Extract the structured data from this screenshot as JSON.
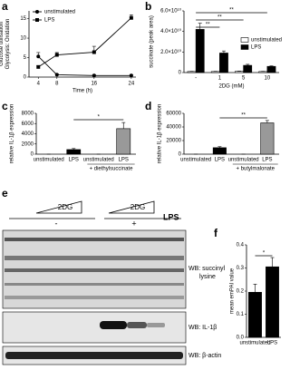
{
  "panel_labels": [
    "a",
    "b",
    "c",
    "d",
    "e",
    "f"
  ],
  "chart_data": [
    {
      "type": "line",
      "ylabel": [
        "Glucose utilisation",
        "Glycolysis: Oxidation"
      ],
      "xlabel": "Time (h)",
      "x": [
        4,
        8,
        16,
        24
      ],
      "xlim": [
        2,
        25
      ],
      "xticks": [
        4,
        8,
        16,
        24
      ],
      "ylim": [
        0,
        17
      ],
      "yticks": [
        0,
        5,
        10,
        15
      ],
      "legend": "upper left",
      "series": [
        {
          "name": "unstimulated",
          "marker": "circle",
          "color": "#000000",
          "values": [
            5.3,
            0.6,
            0.4,
            0.4
          ],
          "errors": [
            1.0,
            0.2,
            0.2,
            0.2
          ]
        },
        {
          "name": "LPS",
          "marker": "square",
          "color": "#000000",
          "values": [
            2.6,
            5.7,
            6.4,
            15.2
          ],
          "errors": [
            0.3,
            0.6,
            1.5,
            0.8
          ]
        }
      ]
    },
    {
      "type": "bar",
      "ylabel": [
        "succinate (peak area)"
      ],
      "xlabel": "2DG (mM)",
      "categories": [
        "-",
        "1",
        "5",
        "10"
      ],
      "ylim": [
        0,
        60000000000
      ],
      "yticks": [
        0,
        {
          "value": 20000000000,
          "label": "2.0×10¹⁰"
        },
        {
          "value": 40000000000,
          "label": "4.0×10¹⁰"
        },
        {
          "value": 60000000000,
          "label": "6.0×10¹⁰"
        }
      ],
      "legend": "upper right",
      "annotations": [
        "**",
        "**",
        "**"
      ],
      "series": [
        {
          "name": "unstimulated",
          "color": "#ffffff",
          "values": [
            1000000000,
            1000000000,
            1200000000,
            1000000000
          ],
          "errors": [
            200000000,
            200000000,
            200000000,
            200000000
          ]
        },
        {
          "name": "LPS",
          "color": "#000000",
          "values": [
            42000000000,
            19000000000,
            7000000000,
            6000000000
          ],
          "errors": [
            6000000000,
            2000000000,
            1000000000,
            500000000
          ]
        }
      ]
    },
    {
      "type": "bar",
      "ylabel": [
        "relative IL-1β expression"
      ],
      "categories": [
        "unstimulated",
        "LPS",
        "unstimulated",
        "LPS"
      ],
      "values": [
        0,
        900,
        0,
        5000
      ],
      "errors": [
        0,
        200,
        0,
        1200
      ],
      "colors": [
        "#000000",
        "#000000",
        "#999999",
        "#999999"
      ],
      "ylim": [
        0,
        8000
      ],
      "yticks": [
        0,
        2000,
        4000,
        6000,
        8000
      ],
      "group_label": "+ diethylsuccinate",
      "annotations": [
        "*"
      ]
    },
    {
      "type": "bar",
      "ylabel": [
        "relative IL-1β expression"
      ],
      "categories": [
        "unstimulated",
        "LPS",
        "unstimulated",
        "LPS"
      ],
      "values": [
        0,
        9500,
        0,
        46000
      ],
      "errors": [
        0,
        1500,
        0,
        3500
      ],
      "colors": [
        "#000000",
        "#000000",
        "#999999",
        "#999999"
      ],
      "ylim": [
        0,
        60000
      ],
      "yticks": [
        0,
        20000,
        40000,
        60000
      ],
      "group_label": "+ butylmalonate",
      "annotations": [
        "**"
      ]
    },
    {
      "type": "bar",
      "ylabel": [
        "mean emPAI value"
      ],
      "categories": [
        "unstimulated",
        "LPS"
      ],
      "values": [
        0.195,
        0.305
      ],
      "errors": [
        0.035,
        0.04
      ],
      "colors": [
        "#000000",
        "#000000"
      ],
      "ylim": [
        0,
        0.4
      ],
      "yticks": [
        {
          "value": 0,
          "label": "0.0"
        },
        0.1,
        0.2,
        0.3,
        0.4
      ],
      "annotations": [
        "*"
      ]
    }
  ],
  "blot": {
    "gradients": [
      "2DG",
      "2DG"
    ],
    "treatment": "LPS",
    "groups": [
      "-",
      "+"
    ],
    "probes": [
      [
        "WB: succinyl",
        "lysine"
      ],
      [
        "WB: IL-1β"
      ],
      [
        "WB: β-actin"
      ]
    ]
  }
}
